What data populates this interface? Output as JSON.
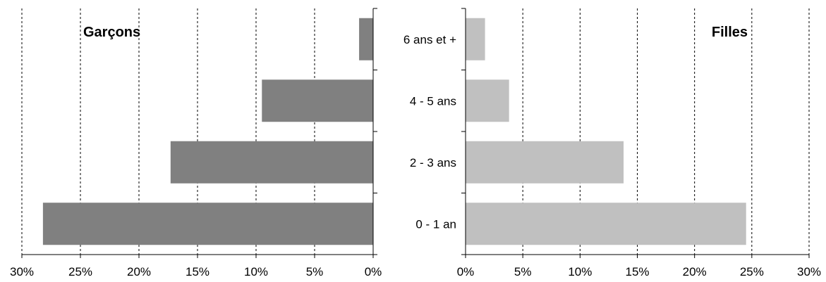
{
  "chart_data": {
    "type": "bar",
    "orientation": "horizontal",
    "layout": "population-pyramid",
    "categories": [
      "0 - 1 an",
      "2 - 3 ans",
      "4 - 5 ans",
      "6 ans et +"
    ],
    "series": [
      {
        "name": "Garçons",
        "side": "left",
        "values": [
          28.2,
          17.3,
          9.5,
          1.2
        ],
        "color": "#808080"
      },
      {
        "name": "Filles",
        "side": "right",
        "values": [
          24.5,
          13.8,
          3.8,
          1.7
        ],
        "color": "#c0c0c0"
      }
    ],
    "xlim": [
      0,
      30
    ],
    "x_ticks": [
      "0%",
      "5%",
      "10%",
      "15%",
      "20%",
      "25%",
      "30%"
    ],
    "grid": "vertical-dashed",
    "title_left": "Garçons",
    "title_right": "Filles"
  }
}
